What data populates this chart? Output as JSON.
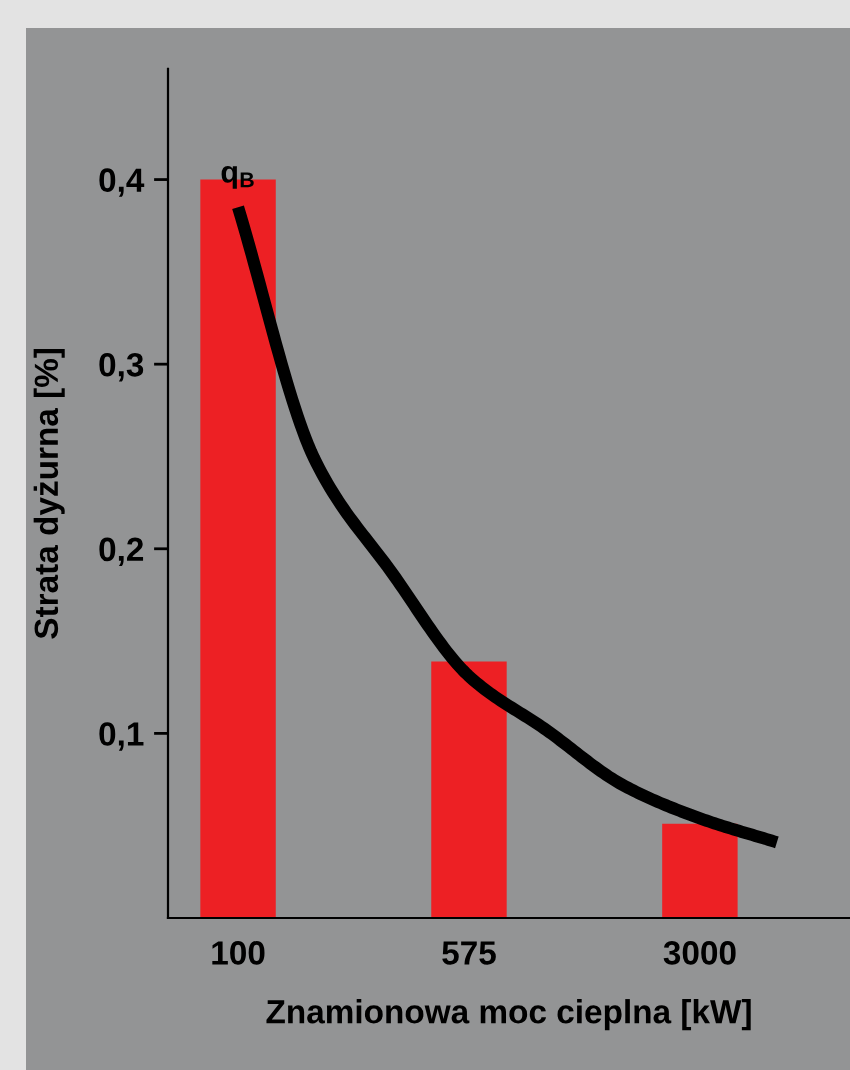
{
  "chart_data": {
    "type": "bar",
    "xlabel": "Znamionowa moc cieplna [kW]",
    "ylabel": "Strata dyżurna [%]",
    "categories": [
      "100",
      null,
      null,
      "575",
      null,
      null,
      "3000",
      null
    ],
    "series": [
      {
        "color": "#ed2024",
        "values": [
          0.4,
          null,
          null,
          0.139,
          null,
          null,
          0.051,
          null
        ]
      },
      {
        "type": "line",
        "name": "q$_{B}$",
        "color": "#000000",
        "values": [
          0.385,
          0.248,
          0.187,
          0.131,
          0.102,
          0.072,
          0.054,
          0.041
        ]
      }
    ],
    "ylim": [
      0,
      0.46
    ],
    "yticks": [
      {
        "value": 0.1,
        "label": "0,1"
      },
      {
        "value": 0.2,
        "label": "0,2"
      },
      {
        "value": 0.3,
        "label": "0,3"
      },
      {
        "value": 0.4,
        "label": "0,4"
      }
    ],
    "grid": false,
    "legend": false
  }
}
